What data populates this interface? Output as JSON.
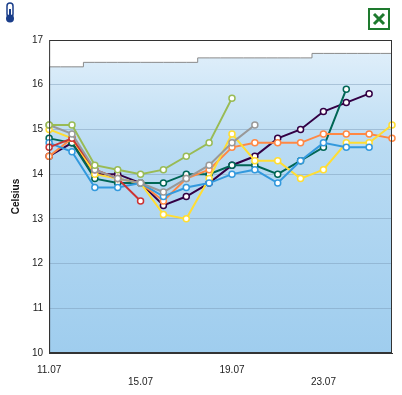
{
  "chart_data": {
    "type": "line",
    "y_label": "Celsius",
    "categories": [
      "11.07",
      null,
      null,
      null,
      "15.07",
      null,
      null,
      null,
      "19.07",
      null,
      null,
      null,
      "23.07",
      null,
      null,
      null
    ],
    "ylim": [
      10,
      17
    ],
    "yticks": [
      10,
      11,
      12,
      13,
      14,
      15,
      16,
      17
    ],
    "grid": true,
    "marker": "circle",
    "series": [
      {
        "type": "area",
        "color": "#ffffff",
        "values": [
          16.4,
          16.4,
          16.5,
          16.5,
          16.5,
          16.5,
          16.5,
          16.6,
          16.6,
          16.6,
          16.6,
          16.6,
          16.7,
          16.7,
          16.7,
          16.7
        ]
      },
      {
        "color": "#99bb55",
        "values": [
          15.1,
          15.1,
          14.2,
          14.1,
          14.0,
          14.1,
          14.4,
          14.7,
          15.7,
          null,
          null,
          null,
          null,
          null,
          null,
          null
        ]
      },
      {
        "color": "#999999",
        "values": [
          15.1,
          14.9,
          14.1,
          13.9,
          13.8,
          13.6,
          13.9,
          14.2,
          14.7,
          15.1,
          null,
          null,
          null,
          null,
          null,
          null
        ]
      },
      {
        "color": "#cc3333",
        "values": [
          14.6,
          14.8,
          14.1,
          13.9,
          13.4,
          null,
          null,
          null,
          null,
          null,
          null,
          null,
          null,
          null,
          null,
          null
        ]
      },
      {
        "color": "#3399dd",
        "values": [
          14.7,
          14.5,
          13.7,
          13.7,
          13.8,
          13.5,
          13.7,
          13.8,
          14.0,
          14.1,
          13.8,
          14.3,
          14.7,
          14.6,
          14.6,
          null
        ]
      },
      {
        "color": "#ffdd33",
        "values": [
          15.0,
          14.8,
          14.0,
          13.9,
          13.8,
          13.1,
          13.0,
          13.9,
          14.9,
          14.3,
          14.3,
          13.9,
          14.1,
          14.7,
          14.7,
          15.1
        ]
      },
      {
        "color": "#ff8844",
        "values": [
          14.4,
          14.8,
          14.1,
          13.9,
          13.8,
          13.4,
          13.9,
          14.1,
          14.6,
          14.7,
          14.7,
          14.7,
          14.9,
          14.9,
          14.9,
          14.8
        ]
      },
      {
        "color": "#006655",
        "values": [
          14.8,
          14.7,
          13.9,
          13.8,
          13.8,
          13.8,
          14.0,
          14.0,
          14.2,
          14.2,
          14.0,
          14.3,
          14.6,
          15.9,
          null,
          null
        ]
      },
      {
        "color": "#330044",
        "values": [
          14.4,
          14.7,
          14.0,
          14.0,
          13.8,
          13.3,
          13.5,
          13.8,
          14.2,
          14.4,
          14.8,
          15.0,
          15.4,
          15.6,
          15.8,
          null
        ]
      }
    ]
  }
}
